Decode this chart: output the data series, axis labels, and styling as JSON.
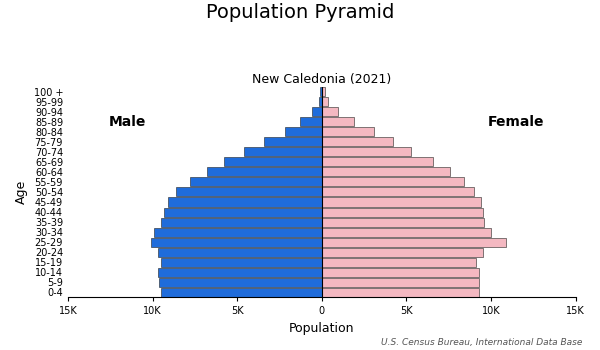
{
  "title": "Population Pyramid",
  "subtitle": "New Caledonia (2021)",
  "xlabel": "Population",
  "ylabel": "Age",
  "footnote": "U.S. Census Bureau, International Data Base",
  "age_groups": [
    "0-4",
    "5-9",
    "10-14",
    "15-19",
    "20-24",
    "25-29",
    "30-34",
    "35-39",
    "40-44",
    "45-49",
    "50-54",
    "55-59",
    "60-64",
    "65-69",
    "70-74",
    "75-79",
    "80-84",
    "85-89",
    "90-94",
    "95-99",
    "100 +"
  ],
  "male": [
    9500,
    9600,
    9700,
    9500,
    9700,
    10100,
    9900,
    9500,
    9300,
    9100,
    8600,
    7800,
    6800,
    5800,
    4600,
    3400,
    2200,
    1300,
    550,
    180,
    80
  ],
  "female": [
    9300,
    9300,
    9300,
    9100,
    9500,
    10900,
    10000,
    9600,
    9500,
    9400,
    9000,
    8400,
    7600,
    6600,
    5300,
    4200,
    3100,
    1900,
    950,
    380,
    180
  ],
  "male_color": "#1f6cdb",
  "female_color": "#f4b8c1",
  "bar_edgecolor": "#222222",
  "bar_linewidth": 0.4,
  "xlim": 15000,
  "xticks": [
    -15000,
    -10000,
    -5000,
    0,
    5000,
    10000,
    15000
  ],
  "xticklabels": [
    "15K",
    "10K",
    "5K",
    "0",
    "5K",
    "10K",
    "15K"
  ],
  "title_fontsize": 14,
  "subtitle_fontsize": 9,
  "axis_label_fontsize": 9,
  "tick_fontsize": 7,
  "label_fontsize": 10,
  "footnote_fontsize": 6.5,
  "background_color": "#ffffff",
  "male_label": "Male",
  "female_label": "Female"
}
